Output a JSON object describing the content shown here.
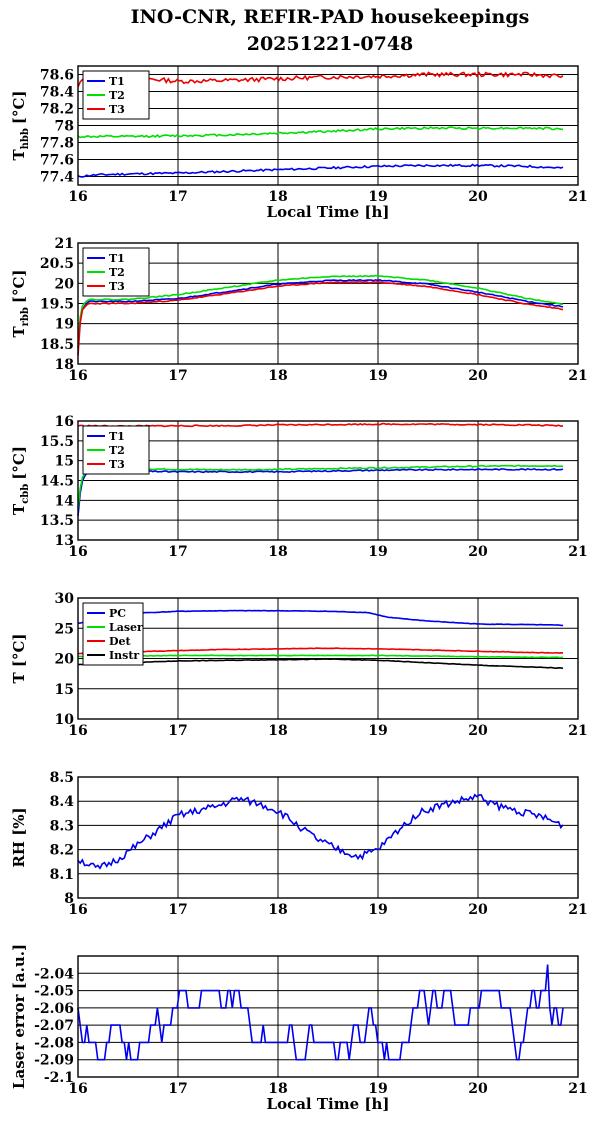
{
  "title_line1": "INO-CNR, REFIR-PAD housekeepings",
  "title_line2": "20251221-0748",
  "chart_data": [
    {
      "type": "line",
      "ylabel_main": "T",
      "ylabel_sub": "hbb",
      "ylabel_unit": "[°C]",
      "xlabel": "Local Time [h]",
      "xlim": [
        16,
        21
      ],
      "ylim": [
        77.3,
        78.7
      ],
      "xticks": [
        "16",
        "17",
        "18",
        "19",
        "20",
        "21"
      ],
      "yticks": [
        77.4,
        77.6,
        77.8,
        78,
        78.2,
        78.4,
        78.6
      ],
      "yticklabels": [
        "77.4",
        "77.6",
        "77.8",
        "78",
        "78.2",
        "78.4",
        "78.6"
      ],
      "grid": true,
      "legend": "top-left",
      "series": [
        {
          "name": "T1",
          "color": "#0000ee",
          "x": [
            16.0,
            16.2,
            16.5,
            17.0,
            17.5,
            18.0,
            18.5,
            19.0,
            19.5,
            20.0,
            20.5,
            20.85
          ],
          "y": [
            77.4,
            77.42,
            77.43,
            77.44,
            77.46,
            77.48,
            77.5,
            77.52,
            77.53,
            77.53,
            77.52,
            77.5
          ],
          "noise": 0.012,
          "seed": 11
        },
        {
          "name": "T2",
          "color": "#00dd00",
          "x": [
            16.0,
            16.5,
            17.0,
            17.5,
            18.0,
            18.5,
            19.0,
            19.5,
            20.0,
            20.5,
            20.85
          ],
          "y": [
            77.87,
            77.87,
            77.88,
            77.89,
            77.91,
            77.93,
            77.96,
            77.97,
            77.97,
            77.97,
            77.96
          ],
          "noise": 0.012,
          "seed": 12
        },
        {
          "name": "T3",
          "color": "#ee0000",
          "x": [
            16.0,
            16.05,
            16.2,
            16.5,
            17.0,
            17.5,
            18.0,
            18.5,
            19.0,
            19.5,
            20.0,
            20.5,
            20.85
          ],
          "y": [
            78.45,
            78.55,
            78.6,
            78.57,
            78.52,
            78.53,
            78.55,
            78.57,
            78.58,
            78.6,
            78.6,
            78.6,
            78.58
          ],
          "noise": 0.025,
          "seed": 13
        }
      ]
    },
    {
      "type": "line",
      "ylabel_main": "T",
      "ylabel_sub": "rbb",
      "ylabel_unit": "[°C]",
      "xlabel": "",
      "xlim": [
        16,
        21
      ],
      "ylim": [
        18,
        21
      ],
      "xticks": [
        "16",
        "17",
        "18",
        "19",
        "20",
        "21"
      ],
      "yticks": [
        18,
        18.5,
        19,
        19.5,
        20,
        20.5,
        21
      ],
      "yticklabels": [
        "18",
        "18.5",
        "19",
        "19.5",
        "20",
        "20.5",
        "21"
      ],
      "grid": true,
      "legend": "top-left",
      "series": [
        {
          "name": "T1",
          "color": "#0000ee",
          "x": [
            16.0,
            16.03,
            16.1,
            16.5,
            17.0,
            17.5,
            18.0,
            18.5,
            19.0,
            19.5,
            20.0,
            20.5,
            20.85
          ],
          "y": [
            18.4,
            19.3,
            19.55,
            19.55,
            19.62,
            19.8,
            19.98,
            20.07,
            20.08,
            19.98,
            19.78,
            19.55,
            19.42
          ],
          "noise": 0.012,
          "seed": 21
        },
        {
          "name": "T2",
          "color": "#00dd00",
          "x": [
            16.0,
            16.03,
            16.1,
            16.5,
            17.0,
            17.5,
            18.0,
            18.5,
            19.0,
            19.5,
            20.0,
            20.5,
            20.85
          ],
          "y": [
            18.5,
            19.4,
            19.6,
            19.6,
            19.72,
            19.9,
            20.08,
            20.17,
            20.18,
            20.08,
            19.88,
            19.62,
            19.48
          ],
          "noise": 0.012,
          "seed": 22
        },
        {
          "name": "T3",
          "color": "#ee0000",
          "x": [
            16.0,
            16.03,
            16.1,
            16.5,
            17.0,
            17.5,
            18.0,
            18.5,
            19.0,
            19.5,
            20.0,
            20.5,
            20.85
          ],
          "y": [
            18.2,
            19.3,
            19.5,
            19.5,
            19.58,
            19.75,
            19.93,
            20.02,
            20.03,
            19.92,
            19.72,
            19.48,
            19.36
          ],
          "noise": 0.012,
          "seed": 23
        }
      ]
    },
    {
      "type": "line",
      "ylabel_main": "T",
      "ylabel_sub": "cbb",
      "ylabel_unit": "[°C]",
      "xlabel": "",
      "xlim": [
        16,
        21
      ],
      "ylim": [
        13,
        16
      ],
      "xticks": [
        "16",
        "17",
        "18",
        "19",
        "20",
        "21"
      ],
      "yticks": [
        13,
        13.5,
        14,
        14.5,
        15,
        15.5,
        16
      ],
      "yticklabels": [
        "13",
        "13.5",
        "14",
        "14.5",
        "15",
        "15.5",
        "16"
      ],
      "grid": true,
      "legend": "top-left",
      "series": [
        {
          "name": "T1",
          "color": "#0000ee",
          "x": [
            16.0,
            16.03,
            16.08,
            16.2,
            16.5,
            17.0,
            17.5,
            18.0,
            18.5,
            19.0,
            19.5,
            20.0,
            20.5,
            20.85
          ],
          "y": [
            13.6,
            14.4,
            14.7,
            14.75,
            14.74,
            14.72,
            14.72,
            14.72,
            14.74,
            14.76,
            14.77,
            14.78,
            14.78,
            14.78
          ],
          "noise": 0.015,
          "seed": 31
        },
        {
          "name": "T2",
          "color": "#00dd00",
          "x": [
            16.0,
            16.03,
            16.08,
            16.2,
            16.5,
            17.0,
            17.5,
            18.0,
            18.5,
            19.0,
            19.5,
            20.0,
            20.5,
            20.85
          ],
          "y": [
            13.8,
            14.5,
            14.75,
            14.8,
            14.8,
            14.78,
            14.77,
            14.78,
            14.8,
            14.82,
            14.84,
            14.86,
            14.87,
            14.87
          ],
          "noise": 0.015,
          "seed": 32
        },
        {
          "name": "T3",
          "color": "#ee0000",
          "x": [
            16.0,
            16.5,
            17.0,
            17.5,
            18.0,
            18.5,
            19.0,
            19.5,
            20.0,
            20.5,
            20.85
          ],
          "y": [
            15.88,
            15.87,
            15.88,
            15.88,
            15.9,
            15.91,
            15.92,
            15.92,
            15.91,
            15.9,
            15.88
          ],
          "noise": 0.015,
          "seed": 33
        }
      ]
    },
    {
      "type": "line",
      "ylabel_main": "T [°C]",
      "ylabel_sub": "",
      "ylabel_unit": "",
      "xlabel": "",
      "xlim": [
        16,
        21
      ],
      "ylim": [
        10,
        30
      ],
      "xticks": [
        "16",
        "17",
        "18",
        "19",
        "20",
        "21"
      ],
      "yticks": [
        10,
        15,
        20,
        25,
        30
      ],
      "yticklabels": [
        "10",
        "15",
        "20",
        "25",
        "30"
      ],
      "grid": true,
      "legend": "top-left",
      "series": [
        {
          "name": "PC",
          "color": "#0000ee",
          "x": [
            16.0,
            16.3,
            16.6,
            17.0,
            17.5,
            18.0,
            18.5,
            18.9,
            19.1,
            19.5,
            20.0,
            20.5,
            20.85
          ],
          "y": [
            25.8,
            26.8,
            27.5,
            27.8,
            27.9,
            27.9,
            27.8,
            27.6,
            26.8,
            26.2,
            25.7,
            25.6,
            25.5
          ],
          "noise": 0.04,
          "seed": 41
        },
        {
          "name": "Laser",
          "color": "#00dd00",
          "x": [
            16.0,
            16.5,
            17.0,
            17.5,
            18.0,
            18.5,
            19.0,
            19.5,
            20.0,
            20.5,
            20.85
          ],
          "y": [
            20.3,
            20.4,
            20.5,
            20.5,
            20.5,
            20.5,
            20.5,
            20.4,
            20.3,
            20.2,
            20.2
          ],
          "noise": 0.04,
          "seed": 42
        },
        {
          "name": "Det",
          "color": "#ee0000",
          "x": [
            16.0,
            16.5,
            17.0,
            17.5,
            18.0,
            18.5,
            19.0,
            19.5,
            20.0,
            20.5,
            20.85
          ],
          "y": [
            20.8,
            21.1,
            21.3,
            21.5,
            21.6,
            21.7,
            21.6,
            21.4,
            21.2,
            21.0,
            20.9
          ],
          "noise": 0.04,
          "seed": 43
        },
        {
          "name": "Instr",
          "color": "#000000",
          "x": [
            16.0,
            16.5,
            17.0,
            17.5,
            18.0,
            18.5,
            19.0,
            19.5,
            20.0,
            20.5,
            20.85
          ],
          "y": [
            19.0,
            19.3,
            19.6,
            19.7,
            19.8,
            19.9,
            19.7,
            19.3,
            18.9,
            18.6,
            18.4
          ],
          "noise": 0.04,
          "seed": 44
        }
      ]
    },
    {
      "type": "line",
      "ylabel_main": "RH [%]",
      "ylabel_sub": "",
      "ylabel_unit": "",
      "xlabel": "",
      "xlim": [
        16,
        21
      ],
      "ylim": [
        8,
        8.5
      ],
      "xticks": [
        "16",
        "17",
        "18",
        "19",
        "20",
        "21"
      ],
      "yticks": [
        8,
        8.1,
        8.2,
        8.3,
        8.4,
        8.5
      ],
      "yticklabels": [
        "8",
        "8.1",
        "8.2",
        "8.3",
        "8.4",
        "8.5"
      ],
      "grid": true,
      "legend": "none",
      "series": [
        {
          "name": "",
          "color": "#0000ee",
          "x": [
            16.0,
            16.2,
            16.4,
            16.6,
            16.8,
            17.0,
            17.2,
            17.4,
            17.6,
            17.8,
            18.0,
            18.2,
            18.4,
            18.6,
            18.8,
            19.0,
            19.2,
            19.4,
            19.6,
            19.8,
            20.0,
            20.2,
            20.4,
            20.6,
            20.85
          ],
          "y": [
            8.16,
            8.12,
            8.16,
            8.22,
            8.28,
            8.34,
            8.36,
            8.38,
            8.41,
            8.39,
            8.36,
            8.3,
            8.24,
            8.2,
            8.17,
            8.2,
            8.28,
            8.35,
            8.38,
            8.4,
            8.42,
            8.38,
            8.36,
            8.34,
            8.3
          ],
          "noise": 0.015,
          "seed": 51
        }
      ]
    },
    {
      "type": "line",
      "ylabel_main": "Laser error [a.u.]",
      "ylabel_sub": "",
      "ylabel_unit": "",
      "xlabel": "Local Time [h]",
      "xlim": [
        16,
        21
      ],
      "ylim": [
        -2.1,
        -2.03
      ],
      "xticks": [
        "16",
        "17",
        "18",
        "19",
        "20",
        "21"
      ],
      "yticks": [
        -2.1,
        -2.09,
        -2.08,
        -2.07,
        -2.06,
        -2.05,
        -2.04
      ],
      "yticklabels": [
        "-2.1",
        "-2.09",
        "-2.08",
        "-2.07",
        "-2.06",
        "-2.05",
        "-2.04"
      ],
      "grid": true,
      "legend": "none",
      "series": [
        {
          "name": "",
          "color": "#0000ee",
          "x": [
            16.0,
            20.85
          ],
          "y": [
            -2.066,
            -2.066
          ],
          "quantized": [
            -2.05,
            -2.06,
            -2.07,
            -2.08,
            -2.09
          ],
          "noise": 0,
          "seed": 61
        }
      ]
    }
  ]
}
